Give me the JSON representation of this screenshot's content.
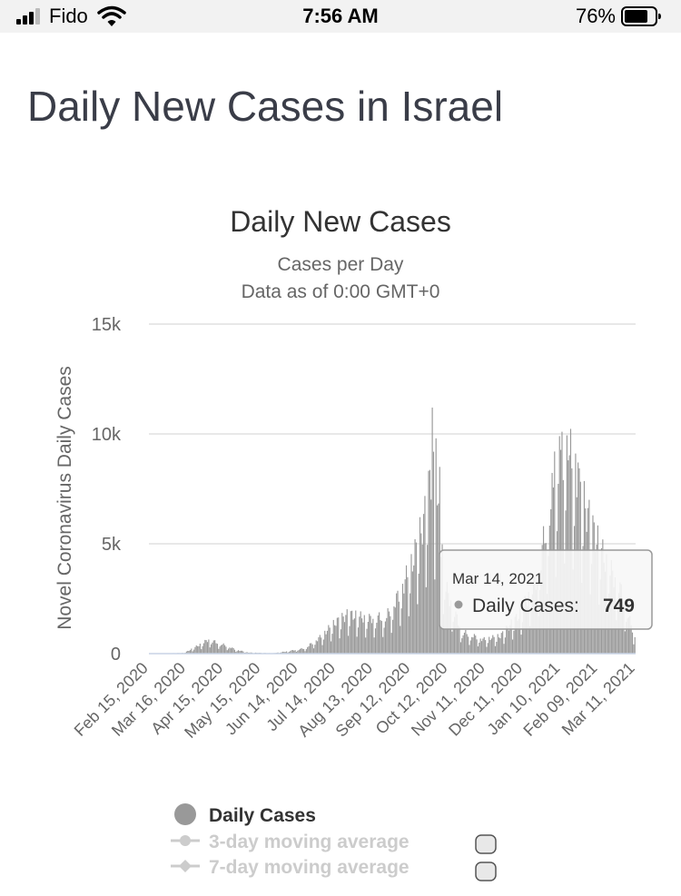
{
  "status_bar": {
    "carrier": "Fido",
    "time": "7:56 AM",
    "battery": "76%"
  },
  "page_title": "Daily New Cases in Israel",
  "chart_data": {
    "type": "bar",
    "title": "Daily New Cases",
    "subtitle_lines": [
      "Cases per Day",
      "Data as of 0:00 GMT+0"
    ],
    "ylabel": "Novel Coronavirus Daily Cases",
    "xlabel": "",
    "ylim": [
      0,
      15000
    ],
    "yticks": [
      0,
      5000,
      10000,
      15000
    ],
    "ytick_labels": [
      "0",
      "5k",
      "10k",
      "15k"
    ],
    "xtick_labels": [
      "Feb 15, 2020",
      "Mar 16, 2020",
      "Apr 15, 2020",
      "May 15, 2020",
      "Jun 14, 2020",
      "Jul 14, 2020",
      "Aug 13, 2020",
      "Sep 12, 2020",
      "Oct 12, 2020",
      "Nov 11, 2020",
      "Dec 11, 2020",
      "Jan 10, 2021",
      "Feb 09, 2021",
      "Mar 11, 2021"
    ],
    "grid": true,
    "bar_color": "#999999",
    "series": [
      {
        "name": "Daily Cases",
        "start_date": "Feb 15, 2020",
        "end_date": "Mar 14, 2021",
        "keypoints": [
          {
            "date": "Feb 15, 2020",
            "value": 0
          },
          {
            "date": "Mar 14, 2020",
            "value": 30
          },
          {
            "date": "Mar 20, 2020",
            "value": 200
          },
          {
            "date": "Mar 28, 2020",
            "value": 450
          },
          {
            "date": "Apr 3, 2020",
            "value": 650
          },
          {
            "date": "Apr 10, 2020",
            "value": 500
          },
          {
            "date": "Apr 18, 2020",
            "value": 350
          },
          {
            "date": "Apr 25, 2020",
            "value": 180
          },
          {
            "date": "May 5, 2020",
            "value": 50
          },
          {
            "date": "May 25, 2020",
            "value": 15
          },
          {
            "date": "Jun 5, 2020",
            "value": 100
          },
          {
            "date": "Jun 20, 2020",
            "value": 250
          },
          {
            "date": "Jul 1, 2020",
            "value": 700
          },
          {
            "date": "Jul 14, 2020",
            "value": 1400
          },
          {
            "date": "Jul 25, 2020",
            "value": 1800
          },
          {
            "date": "Aug 10, 2020",
            "value": 1600
          },
          {
            "date": "Aug 25, 2020",
            "value": 1700
          },
          {
            "date": "Sep 5, 2020",
            "value": 2800
          },
          {
            "date": "Sep 15, 2020",
            "value": 4200
          },
          {
            "date": "Sep 24, 2020",
            "value": 6000
          },
          {
            "date": "Oct 1, 2020",
            "value": 8500
          },
          {
            "date": "Oct 12, 2020",
            "value": 3000
          },
          {
            "date": "Oct 25, 2020",
            "value": 1000
          },
          {
            "date": "Nov 11, 2020",
            "value": 650
          },
          {
            "date": "Nov 25, 2020",
            "value": 800
          },
          {
            "date": "Dec 11, 2020",
            "value": 1800
          },
          {
            "date": "Dec 25, 2020",
            "value": 3500
          },
          {
            "date": "Jan 5, 2021",
            "value": 7000
          },
          {
            "date": "Jan 18, 2021",
            "value": 9500
          },
          {
            "date": "Jan 28, 2021",
            "value": 7500
          },
          {
            "date": "Feb 9, 2021",
            "value": 5500
          },
          {
            "date": "Feb 20, 2021",
            "value": 4000
          },
          {
            "date": "Mar 1, 2021",
            "value": 3200
          },
          {
            "date": "Mar 14, 2021",
            "value": 749
          }
        ],
        "peaks": [
          {
            "date": "Oct 1, 2020",
            "value": 11200
          },
          {
            "date": "Oct 4, 2020",
            "value": 9800
          },
          {
            "date": "Oct 7, 2020",
            "value": 8500
          },
          {
            "date": "Jan 8, 2021",
            "value": 9200
          },
          {
            "date": "Jan 12, 2021",
            "value": 9900
          },
          {
            "date": "Jan 14, 2021",
            "value": 10100
          },
          {
            "date": "Jan 19, 2021",
            "value": 8800
          },
          {
            "date": "Jan 27, 2021",
            "value": 8700
          }
        ]
      },
      {
        "name": "3-day moving average",
        "visible": false
      },
      {
        "name": "7-day moving average",
        "visible": false
      }
    ],
    "tooltip": {
      "date": "Mar 14, 2021",
      "label": "Daily Cases:",
      "value": "749"
    },
    "legend": {
      "position": "bottom",
      "items": [
        {
          "label": "Daily Cases",
          "active": true
        },
        {
          "label": "3-day moving average",
          "active": false
        },
        {
          "label": "7-day moving average",
          "active": false
        }
      ]
    }
  }
}
